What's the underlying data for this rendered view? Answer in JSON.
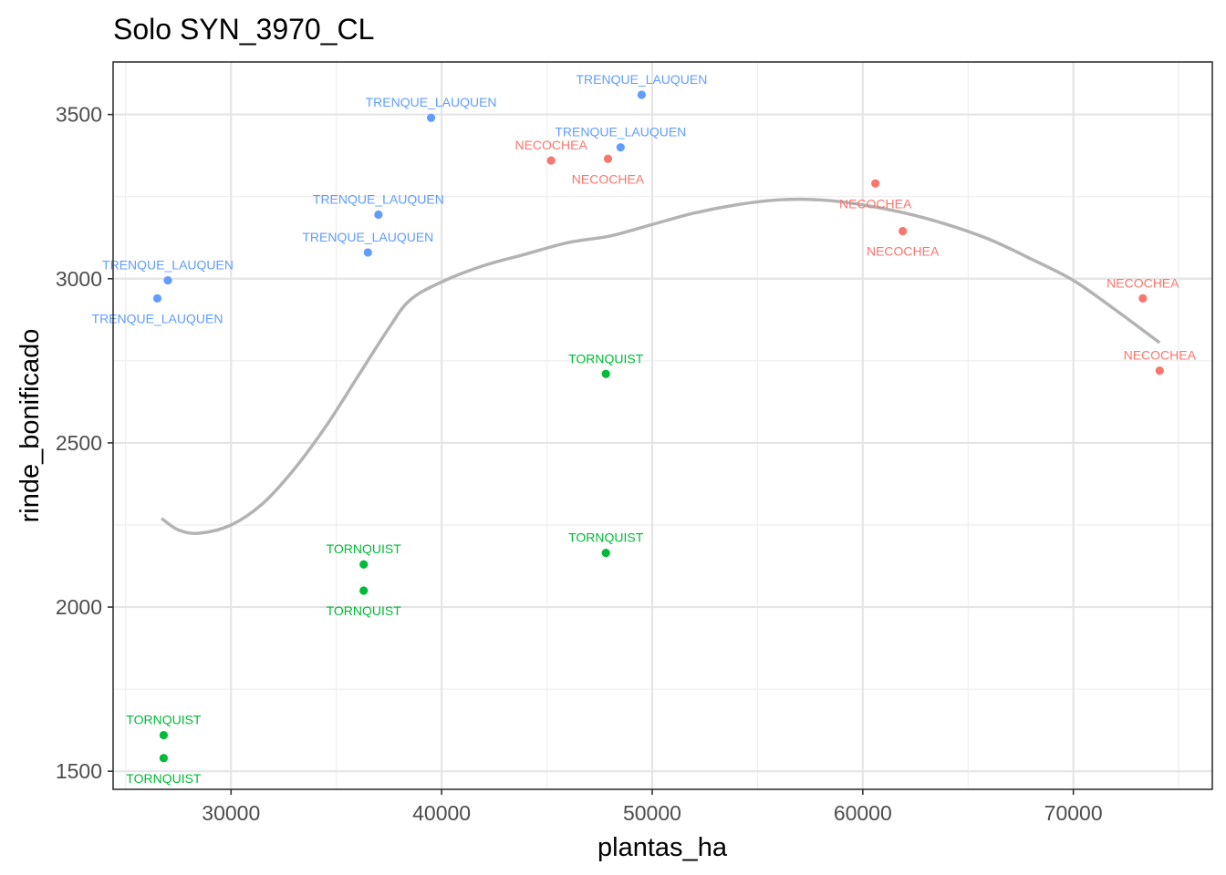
{
  "chart_data": {
    "type": "scatter",
    "title": "Solo SYN_3970_CL",
    "xlabel": "plantas_ha",
    "ylabel": "rinde_bonificado",
    "xlim": [
      24400,
      76600
    ],
    "ylim": [
      1445,
      3660
    ],
    "xticks": [
      30000,
      40000,
      50000,
      60000,
      70000
    ],
    "yticks": [
      1500,
      2000,
      2500,
      3000,
      3500
    ],
    "grid": true,
    "legend": "none",
    "colors": {
      "NECOCHEA": "#f8766d",
      "TORNQUIST": "#00ba38",
      "TRENQUE_LAUQUEN": "#619cff",
      "smooth": "#b3b3b3"
    },
    "points": [
      {
        "x": 39500,
        "y": 3490,
        "label": "TRENQUE_LAUQUEN",
        "pos": "above"
      },
      {
        "x": 49500,
        "y": 3560,
        "label": "TRENQUE_LAUQUEN",
        "pos": "above"
      },
      {
        "x": 48500,
        "y": 3400,
        "label": "TRENQUE_LAUQUEN",
        "pos": "above"
      },
      {
        "x": 37000,
        "y": 3195,
        "label": "TRENQUE_LAUQUEN",
        "pos": "above"
      },
      {
        "x": 36500,
        "y": 3080,
        "label": "TRENQUE_LAUQUEN",
        "pos": "above"
      },
      {
        "x": 27000,
        "y": 2995,
        "label": "TRENQUE_LAUQUEN",
        "pos": "above"
      },
      {
        "x": 26500,
        "y": 2940,
        "label": "TRENQUE_LAUQUEN",
        "pos": "below"
      },
      {
        "x": 45200,
        "y": 3360,
        "label": "NECOCHEA",
        "pos": "above"
      },
      {
        "x": 47900,
        "y": 3365,
        "label": "NECOCHEA",
        "pos": "below"
      },
      {
        "x": 60600,
        "y": 3290,
        "label": "NECOCHEA",
        "pos": "below"
      },
      {
        "x": 61900,
        "y": 3145,
        "label": "NECOCHEA",
        "pos": "below"
      },
      {
        "x": 73300,
        "y": 2940,
        "label": "NECOCHEA",
        "pos": "above"
      },
      {
        "x": 74100,
        "y": 2720,
        "label": "NECOCHEA",
        "pos": "above"
      },
      {
        "x": 47800,
        "y": 2710,
        "label": "TORNQUIST",
        "pos": "above"
      },
      {
        "x": 47800,
        "y": 2165,
        "label": "TORNQUIST",
        "pos": "above"
      },
      {
        "x": 36300,
        "y": 2130,
        "label": "TORNQUIST",
        "pos": "above"
      },
      {
        "x": 36300,
        "y": 2050,
        "label": "TORNQUIST",
        "pos": "below"
      },
      {
        "x": 26800,
        "y": 1610,
        "label": "TORNQUIST",
        "pos": "above"
      },
      {
        "x": 26800,
        "y": 1540,
        "label": "TORNQUIST",
        "pos": "below"
      }
    ],
    "smooth": [
      [
        26700,
        2270
      ],
      [
        27500,
        2235
      ],
      [
        28500,
        2225
      ],
      [
        30000,
        2250
      ],
      [
        31500,
        2315
      ],
      [
        33000,
        2420
      ],
      [
        34500,
        2550
      ],
      [
        36000,
        2700
      ],
      [
        37500,
        2850
      ],
      [
        38500,
        2935
      ],
      [
        40000,
        2990
      ],
      [
        42000,
        3040
      ],
      [
        44000,
        3075
      ],
      [
        46000,
        3110
      ],
      [
        48000,
        3130
      ],
      [
        50000,
        3165
      ],
      [
        52000,
        3200
      ],
      [
        54000,
        3225
      ],
      [
        56000,
        3240
      ],
      [
        58000,
        3240
      ],
      [
        60000,
        3225
      ],
      [
        62000,
        3200
      ],
      [
        64000,
        3165
      ],
      [
        66000,
        3120
      ],
      [
        68000,
        3060
      ],
      [
        70000,
        2995
      ],
      [
        72000,
        2905
      ],
      [
        74100,
        2805
      ]
    ]
  }
}
